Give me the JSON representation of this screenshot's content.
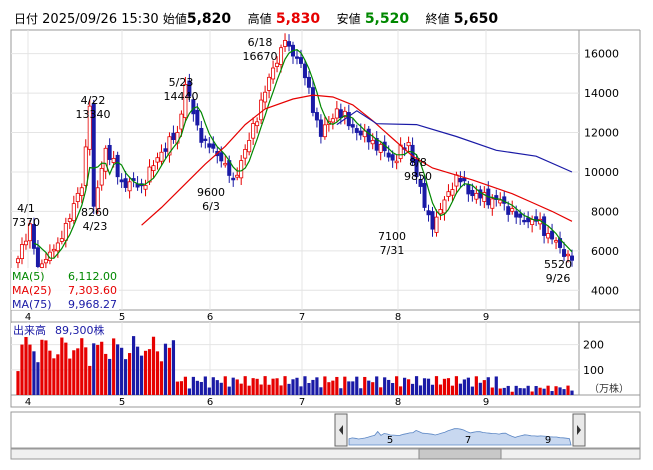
{
  "header": {
    "date_label": "日付",
    "date_value": "2025/09/26 15:30",
    "open_label": "始値",
    "open_value": "5,820",
    "high_label": "高値",
    "high_value": "5,830",
    "low_label": "安値",
    "low_value": "5,520",
    "close_label": "終値",
    "close_value": "5,650"
  },
  "legend": {
    "ma5_label": "MA(5)",
    "ma5_value": "6,112.00",
    "ma25_label": "MA(25)",
    "ma25_value": "7,303.60",
    "ma75_label": "MA(75)",
    "ma75_value": "9,968.27"
  },
  "volume_panel": {
    "title": "出来高",
    "value": "89,300株",
    "unit": "（万株）"
  },
  "colors": {
    "up": "#e60000",
    "down": "#1a1aa6",
    "ma5": "#008800",
    "ma25": "#e60000",
    "ma75": "#1a1aa6",
    "navigator_fill": "#c8d8f0"
  },
  "chart_data": {
    "type": "candlestick",
    "x_axis": {
      "labels": [
        "4",
        "5",
        "6",
        "7",
        "8",
        "9"
      ]
    },
    "price_axis": {
      "ticks": [
        4000,
        6000,
        8000,
        10000,
        12000,
        14000,
        16000
      ],
      "tick_labels": [
        "4000",
        "6000",
        "8000",
        "10000",
        "12000",
        "14000",
        "16000"
      ],
      "range": [
        3000,
        17200
      ]
    },
    "volume_axis": {
      "ticks": [
        100,
        200
      ],
      "tick_labels": [
        "100",
        "200"
      ],
      "range": [
        0,
        290
      ]
    },
    "annotations": [
      {
        "date": "4/1",
        "value": "7370"
      },
      {
        "date": "4/22",
        "value": "13340"
      },
      {
        "date": "4/23",
        "value": "8260"
      },
      {
        "date": "5/23",
        "value": "14440"
      },
      {
        "date": "6/3",
        "value": "9600"
      },
      {
        "date": "6/18",
        "value": "16670"
      },
      {
        "date": "7/31",
        "value": "7100"
      },
      {
        "date": "8/8",
        "value": "9850"
      },
      {
        "date": "9/26",
        "value": "5520"
      }
    ],
    "key_points": [
      {
        "date": "4/1",
        "price": 7370
      },
      {
        "date": "4/22",
        "price": 13340
      },
      {
        "date": "4/23",
        "price": 8260
      },
      {
        "date": "5/23",
        "price": 14440
      },
      {
        "date": "6/3",
        "price": 9600
      },
      {
        "date": "6/18",
        "price": 16670
      },
      {
        "date": "7/31",
        "price": 7100
      },
      {
        "date": "8/8",
        "price": 9850
      },
      {
        "date": "9/26",
        "price": 5520
      }
    ],
    "ma25_points": [
      [
        31,
        7300
      ],
      [
        36,
        8200
      ],
      [
        42,
        9400
      ],
      [
        47,
        10400
      ],
      [
        52,
        11300
      ],
      [
        57,
        12400
      ],
      [
        62,
        13200
      ],
      [
        69,
        13700
      ],
      [
        74,
        13900
      ],
      [
        79,
        13800
      ],
      [
        84,
        13400
      ],
      [
        89,
        12600
      ],
      [
        94,
        11700
      ],
      [
        99,
        10800
      ],
      [
        104,
        10200
      ],
      [
        109,
        9900
      ],
      [
        114,
        9600
      ],
      [
        119,
        9250
      ],
      [
        124,
        8900
      ],
      [
        129,
        8450
      ],
      [
        134,
        8000
      ],
      [
        139,
        7500
      ]
    ],
    "ma75_points": [
      [
        80,
        12400
      ],
      [
        85,
        13100
      ],
      [
        90,
        12450
      ],
      [
        100,
        12400
      ],
      [
        110,
        11800
      ],
      [
        120,
        11100
      ],
      [
        130,
        10800
      ],
      [
        139,
        10000
      ]
    ],
    "navigator": {
      "labels": [
        "5",
        "7",
        "9"
      ]
    }
  }
}
